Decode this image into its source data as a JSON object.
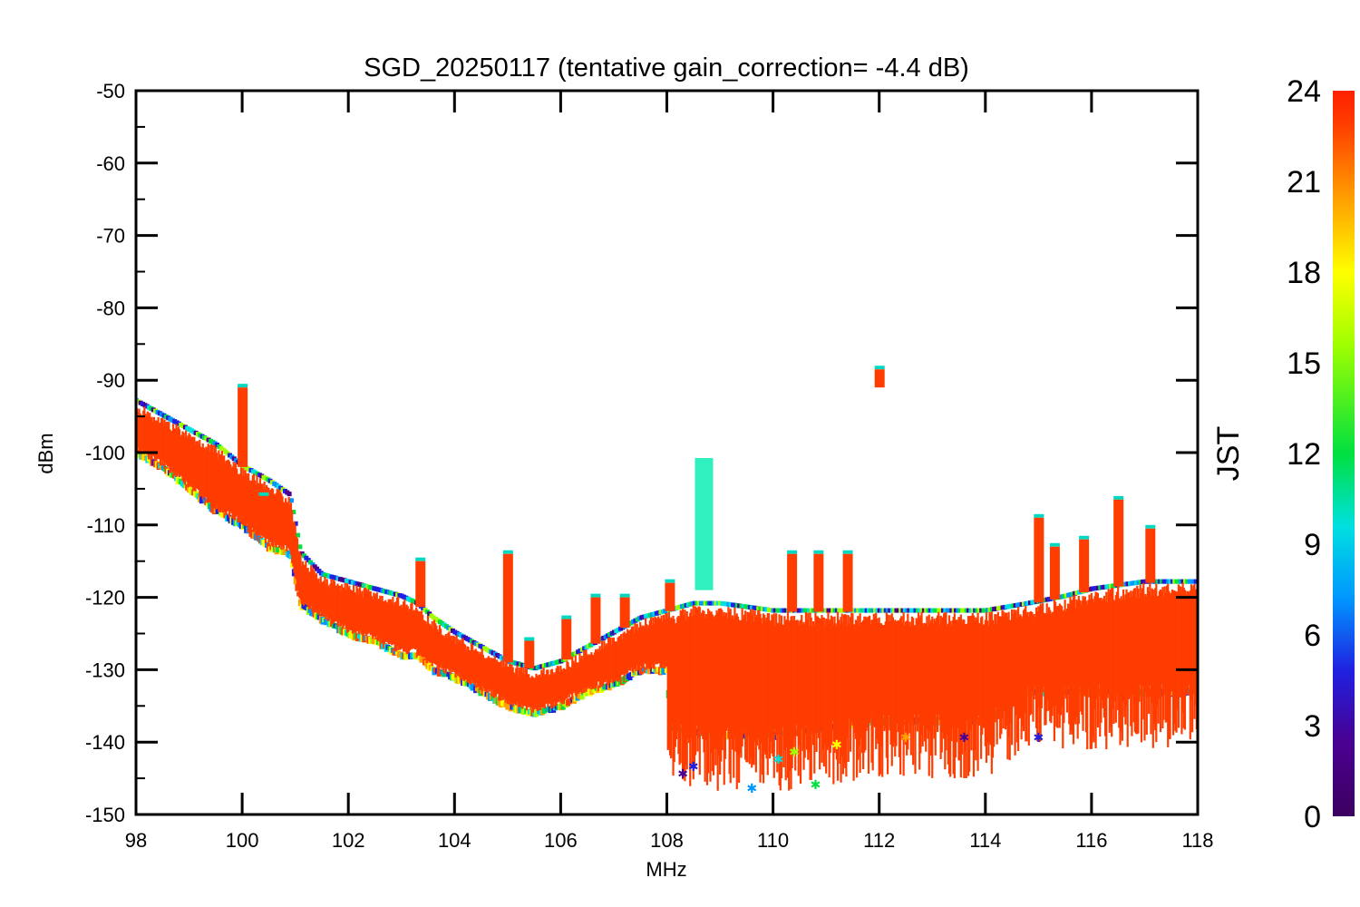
{
  "chart_data": {
    "type": "scatter",
    "title": "SGD_20250117 (tentative gain_correction= -4.4 dB)",
    "xlabel": "MHz",
    "ylabel": "dBm",
    "xlim": [
      98,
      118
    ],
    "ylim": [
      -150,
      -50
    ],
    "xticks": [
      "98",
      "100",
      "102",
      "104",
      "106",
      "108",
      "110",
      "112",
      "114",
      "116",
      "118"
    ],
    "yticks": [
      "-50",
      "-60",
      "-70",
      "-80",
      "-90",
      "-100",
      "-110",
      "-120",
      "-130",
      "-140",
      "-150"
    ],
    "grid": false,
    "colorbar": {
      "label": "JST",
      "range": [
        0,
        24
      ],
      "ticks": [
        "0",
        "3",
        "6",
        "9",
        "12",
        "15",
        "18",
        "21",
        "24"
      ],
      "colormap": "rainbow",
      "colors": [
        "#3c0060",
        "#4a0090",
        "#2020e0",
        "#0096ff",
        "#00e0e0",
        "#00e040",
        "#a0ff00",
        "#ffff00",
        "#ffa000",
        "#ff4000",
        "#ff2000"
      ]
    },
    "marker_color_dominant": "#ff3d00",
    "baseline_upper": [
      [
        98.0,
        -93
      ],
      [
        98.5,
        -95
      ],
      [
        99.0,
        -97
      ],
      [
        99.5,
        -99
      ],
      [
        100.0,
        -102
      ],
      [
        100.5,
        -104
      ],
      [
        100.9,
        -106
      ],
      [
        101.1,
        -114
      ],
      [
        101.5,
        -117
      ],
      [
        102.0,
        -118
      ],
      [
        102.5,
        -119
      ],
      [
        103.0,
        -120
      ],
      [
        103.3,
        -121
      ],
      [
        103.6,
        -123
      ],
      [
        104.0,
        -125
      ],
      [
        104.5,
        -127
      ],
      [
        105.0,
        -129
      ],
      [
        105.5,
        -130
      ],
      [
        106.0,
        -129
      ],
      [
        106.5,
        -127
      ],
      [
        107.0,
        -125
      ],
      [
        107.5,
        -123
      ],
      [
        108.0,
        -122
      ],
      [
        108.5,
        -121
      ],
      [
        109.0,
        -121
      ],
      [
        110.0,
        -122
      ],
      [
        111.0,
        -122
      ],
      [
        112.0,
        -122
      ],
      [
        113.0,
        -122
      ],
      [
        114.0,
        -122
      ],
      [
        114.8,
        -121
      ],
      [
        115.5,
        -120
      ],
      [
        116.0,
        -119
      ],
      [
        117.0,
        -118
      ],
      [
        118.0,
        -118
      ]
    ],
    "baseline_lower": [
      [
        98.0,
        -100
      ],
      [
        98.5,
        -102
      ],
      [
        99.0,
        -105
      ],
      [
        99.5,
        -108
      ],
      [
        100.0,
        -110
      ],
      [
        100.5,
        -113
      ],
      [
        100.9,
        -114
      ],
      [
        101.1,
        -121
      ],
      [
        101.5,
        -123
      ],
      [
        102.0,
        -125
      ],
      [
        102.5,
        -126
      ],
      [
        103.0,
        -128
      ],
      [
        103.3,
        -128
      ],
      [
        103.6,
        -130
      ],
      [
        104.0,
        -131
      ],
      [
        104.5,
        -133
      ],
      [
        105.0,
        -135
      ],
      [
        105.5,
        -136
      ],
      [
        106.0,
        -135
      ],
      [
        106.5,
        -133
      ],
      [
        107.0,
        -132
      ],
      [
        107.5,
        -130
      ],
      [
        108.0,
        -130
      ],
      [
        108.05,
        -138
      ],
      [
        109.0,
        -139
      ],
      [
        110.0,
        -139
      ],
      [
        111.0,
        -138
      ],
      [
        112.0,
        -137
      ],
      [
        113.0,
        -137
      ],
      [
        114.0,
        -137
      ],
      [
        114.8,
        -133
      ],
      [
        115.5,
        -133
      ],
      [
        116.0,
        -133
      ],
      [
        117.0,
        -133
      ],
      [
        118.0,
        -133
      ]
    ],
    "peaks": [
      {
        "x": 100.0,
        "y": -91
      },
      {
        "x": 100.4,
        "y": -106
      },
      {
        "x": 103.35,
        "y": -115
      },
      {
        "x": 105.0,
        "y": -114
      },
      {
        "x": 105.4,
        "y": -126
      },
      {
        "x": 106.1,
        "y": -123
      },
      {
        "x": 106.65,
        "y": -120
      },
      {
        "x": 107.2,
        "y": -120
      },
      {
        "x": 108.05,
        "y": -118
      },
      {
        "x": 108.7,
        "y": -101
      },
      {
        "x": 110.35,
        "y": -114
      },
      {
        "x": 110.85,
        "y": -114
      },
      {
        "x": 111.4,
        "y": -114
      },
      {
        "x": 112.0,
        "y": -88.5
      },
      {
        "x": 115.0,
        "y": -109
      },
      {
        "x": 115.3,
        "y": -113
      },
      {
        "x": 115.85,
        "y": -112
      },
      {
        "x": 116.5,
        "y": -106.5
      },
      {
        "x": 117.1,
        "y": -110.5
      }
    ],
    "outliers_low": [
      [
        108.3,
        -145
      ],
      [
        108.5,
        -144
      ],
      [
        109.6,
        -147
      ],
      [
        110.1,
        -143
      ],
      [
        110.8,
        -146.5
      ],
      [
        110.4,
        -142
      ],
      [
        111.2,
        -141
      ],
      [
        112.5,
        -140
      ],
      [
        113.6,
        -140
      ],
      [
        115.0,
        -140
      ]
    ]
  }
}
